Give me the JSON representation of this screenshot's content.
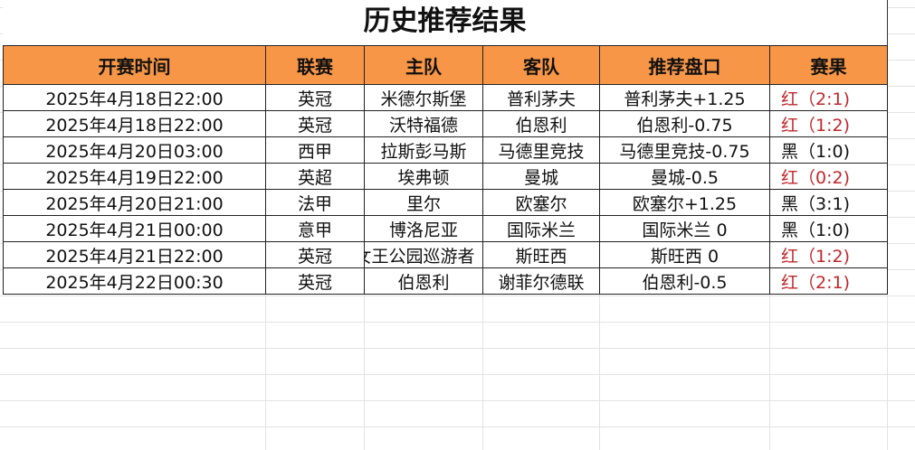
{
  "title": "历史推荐结果",
  "headers": [
    "开赛时间",
    "联赛",
    "主队",
    "客队",
    "推荐盘口",
    "赛果"
  ],
  "rows": [
    {
      "time": "2025年4月18日22:00",
      "league": "英冠",
      "home": "米德尔斯堡",
      "away": "普利茅夫",
      "pick": "普利茅夫+1.25",
      "result": "红（2:1)",
      "color": "red"
    },
    {
      "time": "2025年4月18日22:00",
      "league": "英冠",
      "home": "沃特福德",
      "away": "伯恩利",
      "pick": "伯恩利-0.75",
      "result": "红（1:2)",
      "color": "red"
    },
    {
      "time": "2025年4月20日03:00",
      "league": "西甲",
      "home": "拉斯彭马斯",
      "away": "马德里竞技",
      "pick": "马德里竞技-0.75",
      "result": "黑（1:0)",
      "color": "black"
    },
    {
      "time": "2025年4月19日22:00",
      "league": "英超",
      "home": "埃弗顿",
      "away": "曼城",
      "pick": "曼城-0.5",
      "result": "红（0:2)",
      "color": "red"
    },
    {
      "time": "2025年4月20日21:00",
      "league": "法甲",
      "home": "里尔",
      "away": "欧塞尔",
      "pick": "欧塞尔+1.25",
      "result": "黑（3:1)",
      "color": "black"
    },
    {
      "time": "2025年4月21日00:00",
      "league": "意甲",
      "home": "博洛尼亚",
      "away": "国际米兰",
      "pick": "国际米兰 0",
      "result": "黑（1:0)",
      "color": "black"
    },
    {
      "time": "2025年4月21日22:00",
      "league": "英冠",
      "home": "女王公园巡游者",
      "away": "斯旺西",
      "pick": "斯旺西 0",
      "result": "红（1:2)",
      "color": "red"
    },
    {
      "time": "2025年4月22日00:30",
      "league": "英冠",
      "home": "伯恩利",
      "away": "谢菲尔德联",
      "pick": "伯恩利-0.5",
      "result": "红（2:1)",
      "color": "red"
    }
  ],
  "colors": {
    "header_bg": "#f79646",
    "win": "#c0282d",
    "loss": "#111111"
  }
}
